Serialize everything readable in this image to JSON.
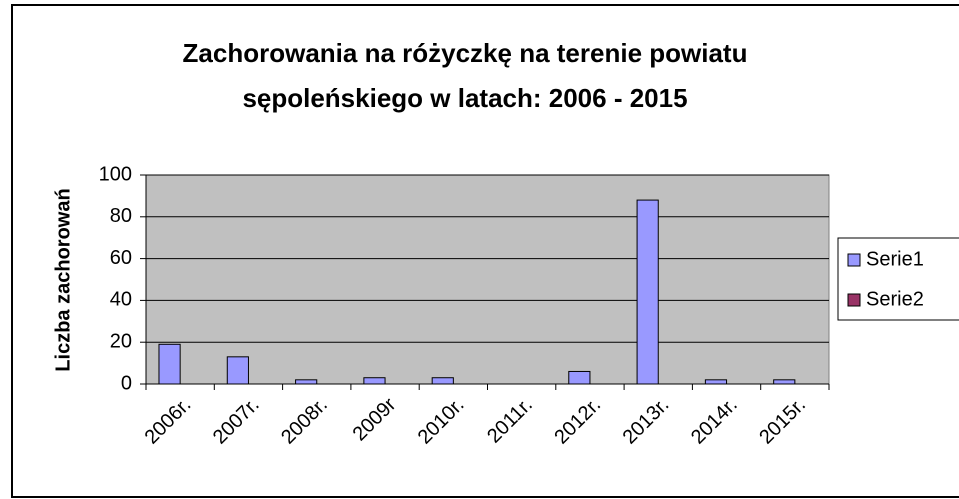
{
  "chart_data": {
    "type": "bar",
    "title": "Zachorowania na różyczkę na terenie powiatu",
    "subtitle": "sępoleńskiego w latach: 2006 - 2015",
    "y_label": "Liczba zachorowań",
    "categories": [
      "2006r.",
      "2007r.",
      "2008r.",
      "2009r",
      "2010r.",
      "2011r.",
      "2012r.",
      "2013r.",
      "2014r.",
      "2015r."
    ],
    "series": [
      {
        "name": "Serie1",
        "color": "#9999ff",
        "values": [
          19,
          13,
          2,
          3,
          3,
          0,
          6,
          88,
          2,
          2
        ]
      },
      {
        "name": "Serie2",
        "color": "#993366",
        "values": [
          null,
          null,
          null,
          null,
          null,
          null,
          null,
          null,
          null,
          null
        ]
      }
    ],
    "ylim": [
      0,
      100
    ],
    "yticks": [
      0,
      20,
      40,
      60,
      80,
      100
    ],
    "grid": true,
    "legend": "right"
  }
}
